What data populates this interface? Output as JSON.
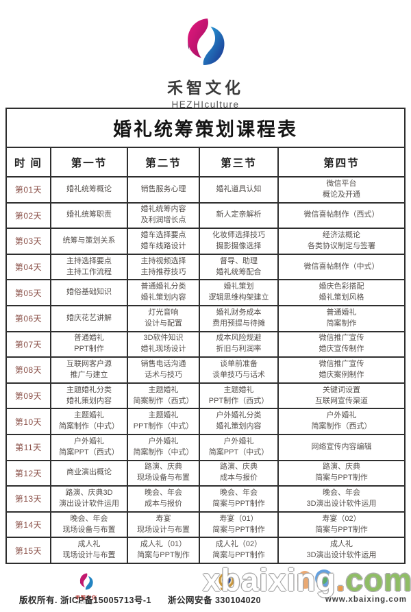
{
  "brand": {
    "name": "禾智文化",
    "subtitle": "HEZHIculture",
    "logo_icon": "hezhi-swirl-logo"
  },
  "table": {
    "title": "婚礼统筹策划课程表",
    "headers": [
      "时  间",
      "第一节",
      "第二节",
      "第三节",
      "第四节"
    ],
    "rows": [
      {
        "day": "第01天",
        "cells": [
          [
            "婚礼统筹概论"
          ],
          [
            "销售服务心理"
          ],
          [
            "婚礼道具认知"
          ],
          [
            "微信平台",
            "概论及开通"
          ]
        ]
      },
      {
        "day": "第02天",
        "cells": [
          [
            "婚礼统筹职责"
          ],
          [
            "婚礼统筹内容",
            "及利润增长点"
          ],
          [
            "新人定亲解析"
          ],
          [
            "微信喜帖制作（西式）"
          ]
        ]
      },
      {
        "day": "第03天",
        "cells": [
          [
            "统筹与策划关系"
          ],
          [
            "婚车选择要点",
            "婚车线路设计"
          ],
          [
            "化妆师选择技巧",
            "摄影摄像选择"
          ],
          [
            "经济法概论",
            "各类协议制定与签署"
          ]
        ]
      },
      {
        "day": "第04天",
        "cells": [
          [
            "主持选择要点",
            "主持工作流程"
          ],
          [
            "主持视频选择",
            "主持推荐技巧"
          ],
          [
            "督导、助理",
            "婚礼统筹配合"
          ],
          [
            "微信喜帖制作（中式）"
          ]
        ]
      },
      {
        "day": "第05天",
        "cells": [
          [
            "婚俗基础知识"
          ],
          [
            "普通婚礼分类",
            "婚礼策划内容"
          ],
          [
            "婚礼策划",
            "逻辑思维构架建立"
          ],
          [
            "婚庆色彩搭配",
            "婚礼策划风格"
          ]
        ]
      },
      {
        "day": "第06天",
        "cells": [
          [
            "婚庆花艺讲解"
          ],
          [
            "灯光音响",
            "设计与配置"
          ],
          [
            "婚礼财务成本",
            "费用预提与待摊"
          ],
          [
            "普通婚礼",
            "简案制作"
          ]
        ]
      },
      {
        "day": "第07天",
        "cells": [
          [
            "普通婚礼",
            "PPT制作"
          ],
          [
            "3D软件知识",
            "婚礼现场设计"
          ],
          [
            "成本风险规避",
            "折旧与利润率"
          ],
          [
            "微信推广宣传",
            "婚庆宣传制作"
          ]
        ]
      },
      {
        "day": "第08天",
        "cells": [
          [
            "互联网客户源",
            "推广与建立"
          ],
          [
            "销售电话沟通",
            "话术与技巧"
          ],
          [
            "谈单前准备",
            "谈单技巧与话术"
          ],
          [
            "微信推广宣传",
            "婚庆案例制作"
          ]
        ]
      },
      {
        "day": "第09天",
        "cells": [
          [
            "主题婚礼分类",
            "婚礼策划内容"
          ],
          [
            "主题婚礼",
            "简案制作（西式）"
          ],
          [
            "主题婚礼",
            "PPT制作（西式）"
          ],
          [
            "关键词设置",
            "互联网宣传渠道"
          ]
        ]
      },
      {
        "day": "第10天",
        "cells": [
          [
            "主题婚礼",
            "简案制作（中式）"
          ],
          [
            "主题婚礼",
            "PPT制作（中式）"
          ],
          [
            "户外婚礼分类",
            "婚礼策划内容"
          ],
          [
            "户外婚礼",
            "简案制作（西式）"
          ]
        ]
      },
      {
        "day": "第11天",
        "cells": [
          [
            "户外婚礼",
            "简案PPT（西式）"
          ],
          [
            "户外婚礼",
            "简案制作（中式）"
          ],
          [
            "户外婚礼",
            "简案PPT（中式）"
          ],
          [
            "网络宣传内容编辑"
          ]
        ]
      },
      {
        "day": "第12天",
        "cells": [
          [
            "商业演出概论"
          ],
          [
            "路演、庆典",
            "现场设备与布置"
          ],
          [
            "路演、庆典",
            "成本与报价"
          ],
          [
            "路演、庆典",
            "简案与PPT制作"
          ]
        ]
      },
      {
        "day": "第13天",
        "cells": [
          [
            "路演、庆典3D",
            "演出设计软件运用"
          ],
          [
            "晚会、年会",
            "成本与报价"
          ],
          [
            "晚会、年会",
            "简案与PPT制作"
          ],
          [
            "晚会、年会",
            "3D演出设计软件运用"
          ]
        ]
      },
      {
        "day": "第14天",
        "cells": [
          [
            "晚会、年会",
            "现场设备与布置"
          ],
          [
            "寿宴",
            "现场设计与布置"
          ],
          [
            "寿宴（01）",
            "简案与PPT制作"
          ],
          [
            "寿宴（02）",
            "简案与PPT制作"
          ]
        ]
      },
      {
        "day": "第15天",
        "cells": [
          [
            "成人礼",
            "现场设计与布置"
          ],
          [
            "成人礼（01）",
            "简案与PPT制作"
          ],
          [
            "成人礼（02）",
            "简案与PPT制作"
          ],
          [
            "成人礼",
            "3D演出设计软件运用"
          ]
        ]
      }
    ]
  },
  "footer": {
    "mini_brand": "禾智文化",
    "mini_brand_sub": "HEZHIculture",
    "copyright": "版权所有. 浙ICP备15005713号-1",
    "security_label": "浙公网安备 330104020",
    "badge_icon": "police-badge-icon"
  },
  "watermark": {
    "text_main": "xbaixing",
    "text_tld": "com",
    "url": "www.xbaixing.com"
  },
  "colors": {
    "brand_pink": "#e5197e",
    "brand_blue": "#29a8df",
    "brand_purple": "#5a1a5c",
    "table_border": "#2e2e2e",
    "day_text": "#8a5048",
    "body_text": "#55504d"
  }
}
